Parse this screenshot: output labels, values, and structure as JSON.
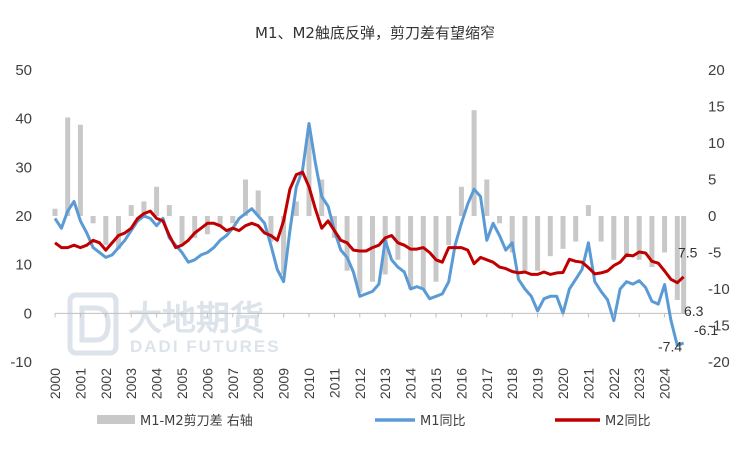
{
  "chart_data": {
    "type": "line",
    "title": "M1、M2触底反弹，剪刀差有望缩窄",
    "x_axis": {
      "ticks": [
        "2000",
        "2001",
        "2002",
        "2003",
        "2004",
        "2005",
        "2006",
        "2007",
        "2008",
        "2009",
        "2010",
        "2011",
        "2012",
        "2013",
        "2014",
        "2015",
        "2016",
        "2017",
        "2018",
        "2019",
        "2020",
        "2021",
        "2022",
        "2023",
        "2024"
      ],
      "range": [
        "2000-01",
        "2024-12"
      ]
    },
    "y_left": {
      "range": [
        -10,
        50
      ],
      "ticks": [
        "-10",
        "0",
        "10",
        "20",
        "30",
        "40",
        "50"
      ]
    },
    "y_right": {
      "range": [
        -20,
        20
      ],
      "ticks": [
        "-20",
        "-15",
        "-10",
        "-5",
        "0",
        "5",
        "10",
        "15",
        "20"
      ]
    },
    "grid": false,
    "legend_position": "bottom",
    "series": [
      {
        "name": "M1-M2剪刀差 右轴",
        "type": "bar",
        "axis": "right",
        "color": "#c8c8c8",
        "x": [
          "2000-01",
          "2000-07",
          "2001-01",
          "2001-07",
          "2002-01",
          "2002-07",
          "2003-01",
          "2003-07",
          "2004-01",
          "2004-07",
          "2005-01",
          "2005-07",
          "2006-01",
          "2006-07",
          "2007-01",
          "2007-07",
          "2008-01",
          "2008-07",
          "2009-01",
          "2009-07",
          "2010-01",
          "2010-07",
          "2011-01",
          "2011-07",
          "2012-01",
          "2012-07",
          "2013-01",
          "2013-07",
          "2014-01",
          "2014-07",
          "2015-01",
          "2015-07",
          "2016-01",
          "2016-07",
          "2017-01",
          "2017-07",
          "2018-01",
          "2018-07",
          "2019-01",
          "2019-07",
          "2020-01",
          "2020-07",
          "2021-01",
          "2021-07",
          "2022-01",
          "2022-07",
          "2023-01",
          "2023-07",
          "2024-01",
          "2024-07",
          "2024-10"
        ],
        "values": [
          1.0,
          13.5,
          12.5,
          -1.0,
          -4.0,
          -4.5,
          1.5,
          2.0,
          4.0,
          1.5,
          -4.0,
          -3.0,
          -2.5,
          -1.5,
          -1.0,
          5.0,
          3.5,
          -3.5,
          -8.0,
          2.0,
          12.0,
          5.0,
          -3.0,
          -7.5,
          -10.5,
          -9.0,
          -8.0,
          -6.0,
          -10.0,
          -10.0,
          -9.0,
          -4.0,
          4.0,
          14.5,
          5.0,
          -1.0,
          -5.0,
          -7.5,
          -7.5,
          -5.5,
          -4.5,
          -3.5,
          1.5,
          -3.5,
          -6.0,
          -5.5,
          -6.0,
          -7.0,
          -5.0,
          -11.5,
          -13.4
        ]
      },
      {
        "name": "M1同比",
        "type": "line",
        "axis": "left",
        "color": "#5b9bd5",
        "x": [
          "2000-01",
          "2000-04",
          "2000-07",
          "2000-10",
          "2001-01",
          "2001-04",
          "2001-07",
          "2001-10",
          "2002-01",
          "2002-04",
          "2002-07",
          "2002-10",
          "2003-01",
          "2003-04",
          "2003-07",
          "2003-10",
          "2004-01",
          "2004-04",
          "2004-07",
          "2004-10",
          "2005-01",
          "2005-04",
          "2005-07",
          "2005-10",
          "2006-01",
          "2006-04",
          "2006-07",
          "2006-10",
          "2007-01",
          "2007-04",
          "2007-07",
          "2007-10",
          "2008-01",
          "2008-04",
          "2008-07",
          "2008-10",
          "2009-01",
          "2009-04",
          "2009-07",
          "2009-10",
          "2010-01",
          "2010-04",
          "2010-07",
          "2010-10",
          "2011-01",
          "2011-04",
          "2011-07",
          "2011-10",
          "2012-01",
          "2012-04",
          "2012-07",
          "2012-10",
          "2013-01",
          "2013-04",
          "2013-07",
          "2013-10",
          "2014-01",
          "2014-04",
          "2014-07",
          "2014-10",
          "2015-01",
          "2015-04",
          "2015-07",
          "2015-10",
          "2016-01",
          "2016-04",
          "2016-07",
          "2016-10",
          "2017-01",
          "2017-04",
          "2017-07",
          "2017-10",
          "2018-01",
          "2018-04",
          "2018-07",
          "2018-10",
          "2019-01",
          "2019-04",
          "2019-07",
          "2019-10",
          "2020-01",
          "2020-04",
          "2020-07",
          "2020-10",
          "2021-01",
          "2021-04",
          "2021-07",
          "2021-10",
          "2022-01",
          "2022-04",
          "2022-07",
          "2022-10",
          "2023-01",
          "2023-04",
          "2023-07",
          "2023-10",
          "2024-01",
          "2024-04",
          "2024-07",
          "2024-10"
        ],
        "values": [
          19.5,
          17.5,
          21.0,
          23.0,
          19.0,
          16.5,
          13.5,
          12.5,
          11.5,
          12.0,
          13.5,
          15.0,
          17.0,
          19.0,
          20.0,
          19.5,
          18.0,
          19.5,
          15.5,
          14.0,
          12.5,
          10.5,
          11.0,
          12.0,
          12.5,
          13.5,
          15.0,
          16.0,
          17.5,
          19.5,
          20.5,
          21.5,
          20.0,
          18.5,
          14.0,
          9.0,
          6.5,
          17.0,
          26.0,
          29.5,
          39.0,
          31.0,
          24.0,
          22.0,
          17.0,
          13.0,
          11.5,
          8.5,
          3.5,
          4.0,
          4.5,
          6.0,
          15.0,
          11.0,
          9.5,
          8.5,
          5.0,
          5.5,
          5.0,
          3.0,
          3.5,
          4.0,
          6.5,
          14.0,
          18.5,
          22.5,
          25.5,
          24.0,
          15.0,
          18.5,
          16.0,
          13.0,
          14.5,
          7.0,
          5.0,
          3.5,
          0.5,
          3.0,
          3.5,
          3.5,
          0.0,
          5.0,
          7.0,
          9.0,
          14.5,
          6.5,
          4.5,
          2.8,
          -1.5,
          5.0,
          6.5,
          6.0,
          6.7,
          5.3,
          2.5,
          1.9,
          5.9,
          -1.4,
          -6.6,
          -6.1
        ]
      },
      {
        "name": "M2同比",
        "type": "line",
        "axis": "left",
        "color": "#c00000",
        "x": [
          "2000-01",
          "2000-04",
          "2000-07",
          "2000-10",
          "2001-01",
          "2001-04",
          "2001-07",
          "2001-10",
          "2002-01",
          "2002-04",
          "2002-07",
          "2002-10",
          "2003-01",
          "2003-04",
          "2003-07",
          "2003-10",
          "2004-01",
          "2004-04",
          "2004-07",
          "2004-10",
          "2005-01",
          "2005-04",
          "2005-07",
          "2005-10",
          "2006-01",
          "2006-04",
          "2006-07",
          "2006-10",
          "2007-01",
          "2007-04",
          "2007-07",
          "2007-10",
          "2008-01",
          "2008-04",
          "2008-07",
          "2008-10",
          "2009-01",
          "2009-04",
          "2009-07",
          "2009-10",
          "2010-01",
          "2010-04",
          "2010-07",
          "2010-10",
          "2011-01",
          "2011-04",
          "2011-07",
          "2011-10",
          "2012-01",
          "2012-04",
          "2012-07",
          "2012-10",
          "2013-01",
          "2013-04",
          "2013-07",
          "2013-10",
          "2014-01",
          "2014-04",
          "2014-07",
          "2014-10",
          "2015-01",
          "2015-04",
          "2015-07",
          "2015-10",
          "2016-01",
          "2016-04",
          "2016-07",
          "2016-10",
          "2017-01",
          "2017-04",
          "2017-07",
          "2017-10",
          "2018-01",
          "2018-04",
          "2018-07",
          "2018-10",
          "2019-01",
          "2019-04",
          "2019-07",
          "2019-10",
          "2020-01",
          "2020-04",
          "2020-07",
          "2020-10",
          "2021-01",
          "2021-04",
          "2021-07",
          "2021-10",
          "2022-01",
          "2022-04",
          "2022-07",
          "2022-10",
          "2023-01",
          "2023-04",
          "2023-07",
          "2023-10",
          "2024-01",
          "2024-04",
          "2024-07",
          "2024-10"
        ],
        "values": [
          14.5,
          13.5,
          13.5,
          14.0,
          13.5,
          14.0,
          15.0,
          14.5,
          13.0,
          14.5,
          16.0,
          16.5,
          17.5,
          19.5,
          20.5,
          21.0,
          19.5,
          19.0,
          16.0,
          13.5,
          14.0,
          15.0,
          16.5,
          17.5,
          18.5,
          18.5,
          18.0,
          17.0,
          17.5,
          17.0,
          18.0,
          18.5,
          18.0,
          16.5,
          16.0,
          15.0,
          19.0,
          25.5,
          28.5,
          29.0,
          26.0,
          21.5,
          17.5,
          19.0,
          17.0,
          15.0,
          14.5,
          13.0,
          12.8,
          12.8,
          13.5,
          14.0,
          15.5,
          16.0,
          14.5,
          14.0,
          13.2,
          13.2,
          13.5,
          12.5,
          11.0,
          10.5,
          13.5,
          13.5,
          13.5,
          13.0,
          10.2,
          11.5,
          11.0,
          10.5,
          9.5,
          9.2,
          8.6,
          8.3,
          8.5,
          8.0,
          8.0,
          8.5,
          8.0,
          8.3,
          8.4,
          11.1,
          10.7,
          10.5,
          9.4,
          8.1,
          8.3,
          8.7,
          9.8,
          10.5,
          12.0,
          11.8,
          12.6,
          12.4,
          10.7,
          10.3,
          8.7,
          7.0,
          6.3,
          7.5
        ]
      }
    ],
    "annotations": [
      "7.5",
      "6.3",
      "-6.1",
      "-7.4"
    ]
  },
  "watermark": {
    "brand_cn": "大地期货",
    "brand_en": "DADI FUTURES"
  }
}
